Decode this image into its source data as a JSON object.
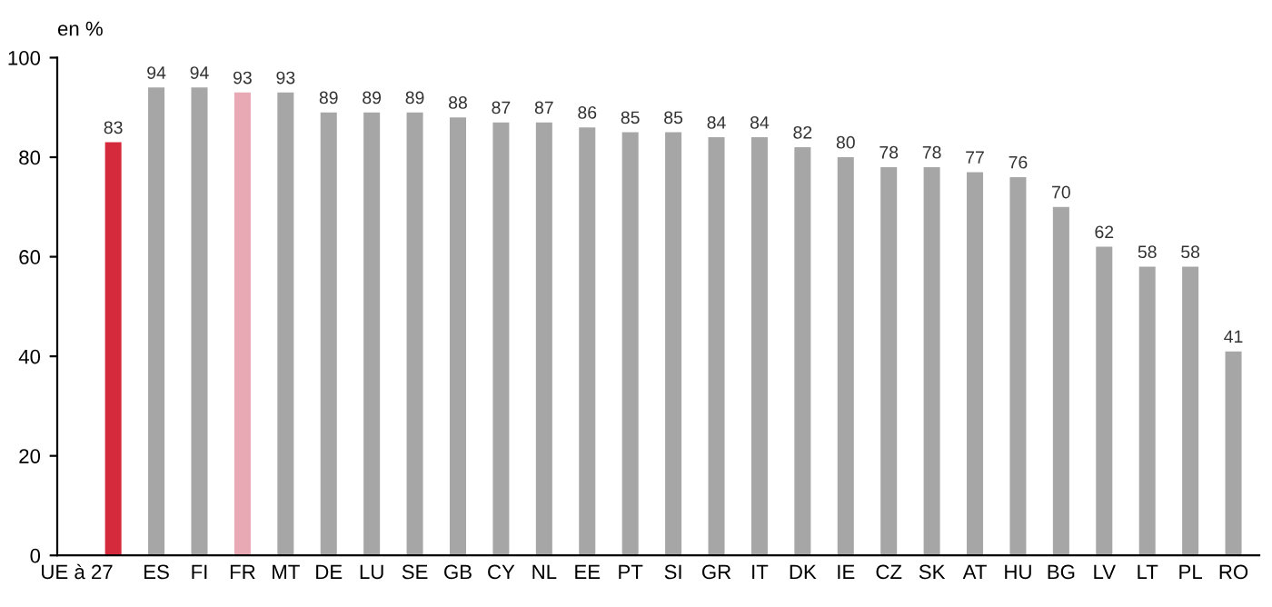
{
  "chart_data": {
    "type": "bar",
    "ylabel": "en %",
    "categories": [
      "UE à 27",
      "ES",
      "FI",
      "FR",
      "MT",
      "DE",
      "LU",
      "SE",
      "GB",
      "CY",
      "NL",
      "EE",
      "PT",
      "SI",
      "GR",
      "IT",
      "DK",
      "IE",
      "CZ",
      "SK",
      "AT",
      "HU",
      "BG",
      "LV",
      "LT",
      "PL",
      "RO"
    ],
    "values": [
      83,
      94,
      94,
      93,
      93,
      89,
      89,
      89,
      88,
      87,
      87,
      86,
      85,
      85,
      84,
      84,
      82,
      80,
      78,
      78,
      77,
      76,
      70,
      62,
      58,
      58,
      41
    ],
    "colors": [
      "#d42a3c",
      "#a6a6a6",
      "#a6a6a6",
      "#e8a8b4",
      "#a6a6a6",
      "#a6a6a6",
      "#a6a6a6",
      "#a6a6a6",
      "#a6a6a6",
      "#a6a6a6",
      "#a6a6a6",
      "#a6a6a6",
      "#a6a6a6",
      "#a6a6a6",
      "#a6a6a6",
      "#a6a6a6",
      "#a6a6a6",
      "#a6a6a6",
      "#a6a6a6",
      "#a6a6a6",
      "#a6a6a6",
      "#a6a6a6",
      "#a6a6a6",
      "#a6a6a6",
      "#a6a6a6",
      "#a6a6a6",
      "#a6a6a6"
    ],
    "ylim": [
      0,
      100
    ],
    "yticks": [
      0,
      20,
      40,
      60,
      80,
      100
    ],
    "grid": false,
    "data_labels": true
  }
}
